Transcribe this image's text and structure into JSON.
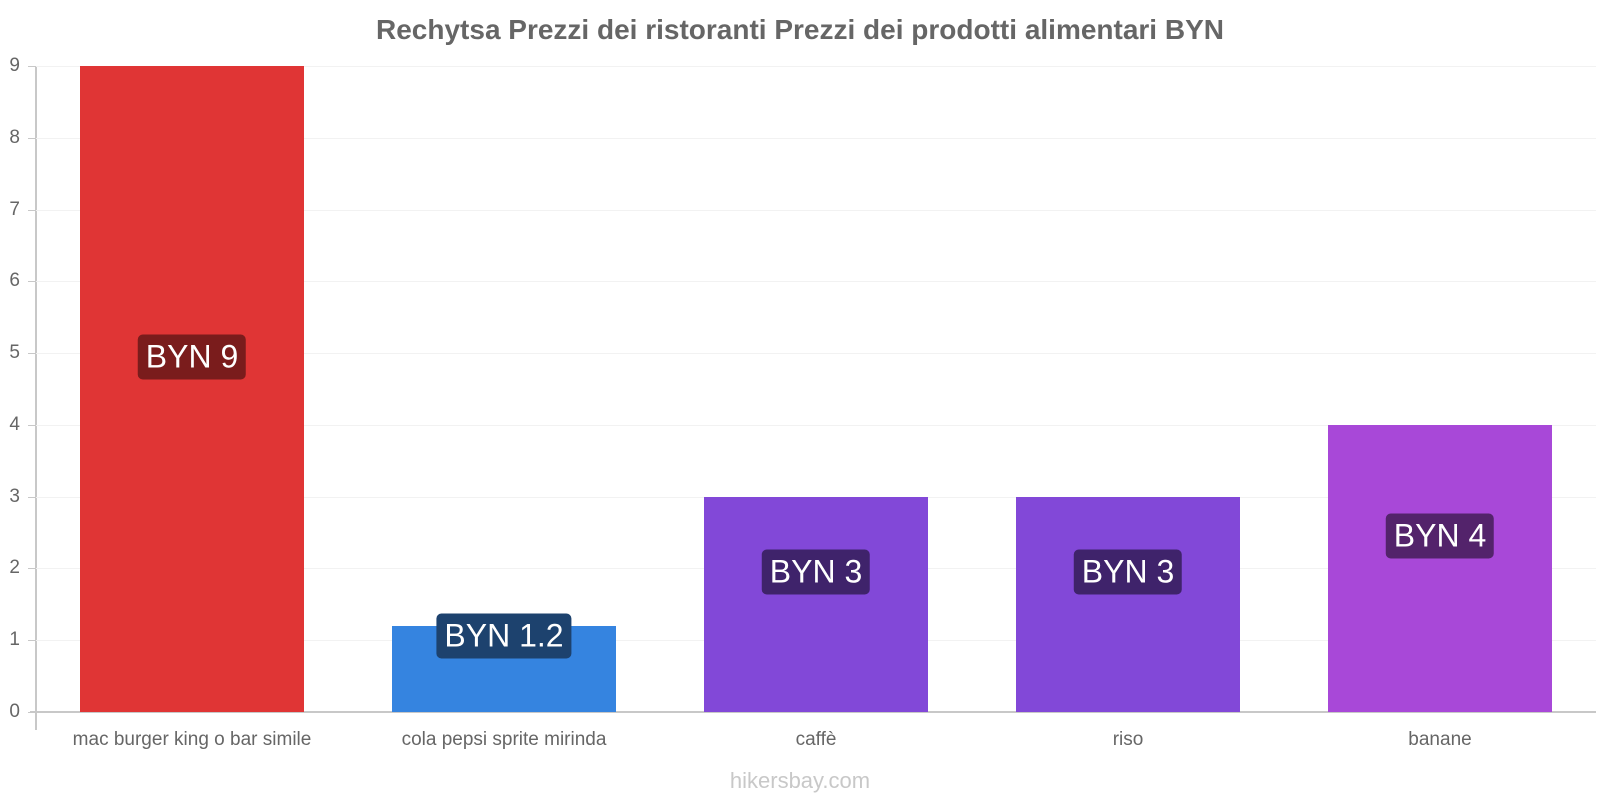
{
  "chart_data": {
    "type": "bar",
    "title": "Rechytsa Prezzi dei ristoranti Prezzi dei prodotti alimentari BYN",
    "categories": [
      "mac burger king o bar simile",
      "cola pepsi sprite mirinda",
      "caffè",
      "riso",
      "banane"
    ],
    "values": [
      9,
      1.2,
      3,
      3,
      4
    ],
    "data_labels": [
      "BYN 9",
      "BYN 1.2",
      "BYN 3",
      "BYN 3",
      "BYN 4"
    ],
    "colors": [
      "#e03535",
      "#3584e0",
      "#8248d8",
      "#8248d8",
      "#a848d8"
    ],
    "label_bg_colors": [
      "#7a1c1c",
      "#1d426e",
      "#3f236b",
      "#3f236b",
      "#53236b"
    ],
    "xlabel": "",
    "ylabel": "",
    "ylim": [
      0,
      9
    ],
    "yticks": [
      0,
      1,
      2,
      3,
      4,
      5,
      6,
      7,
      8,
      9
    ],
    "grid": true,
    "legend": null
  },
  "watermark": "hikersbay.com"
}
